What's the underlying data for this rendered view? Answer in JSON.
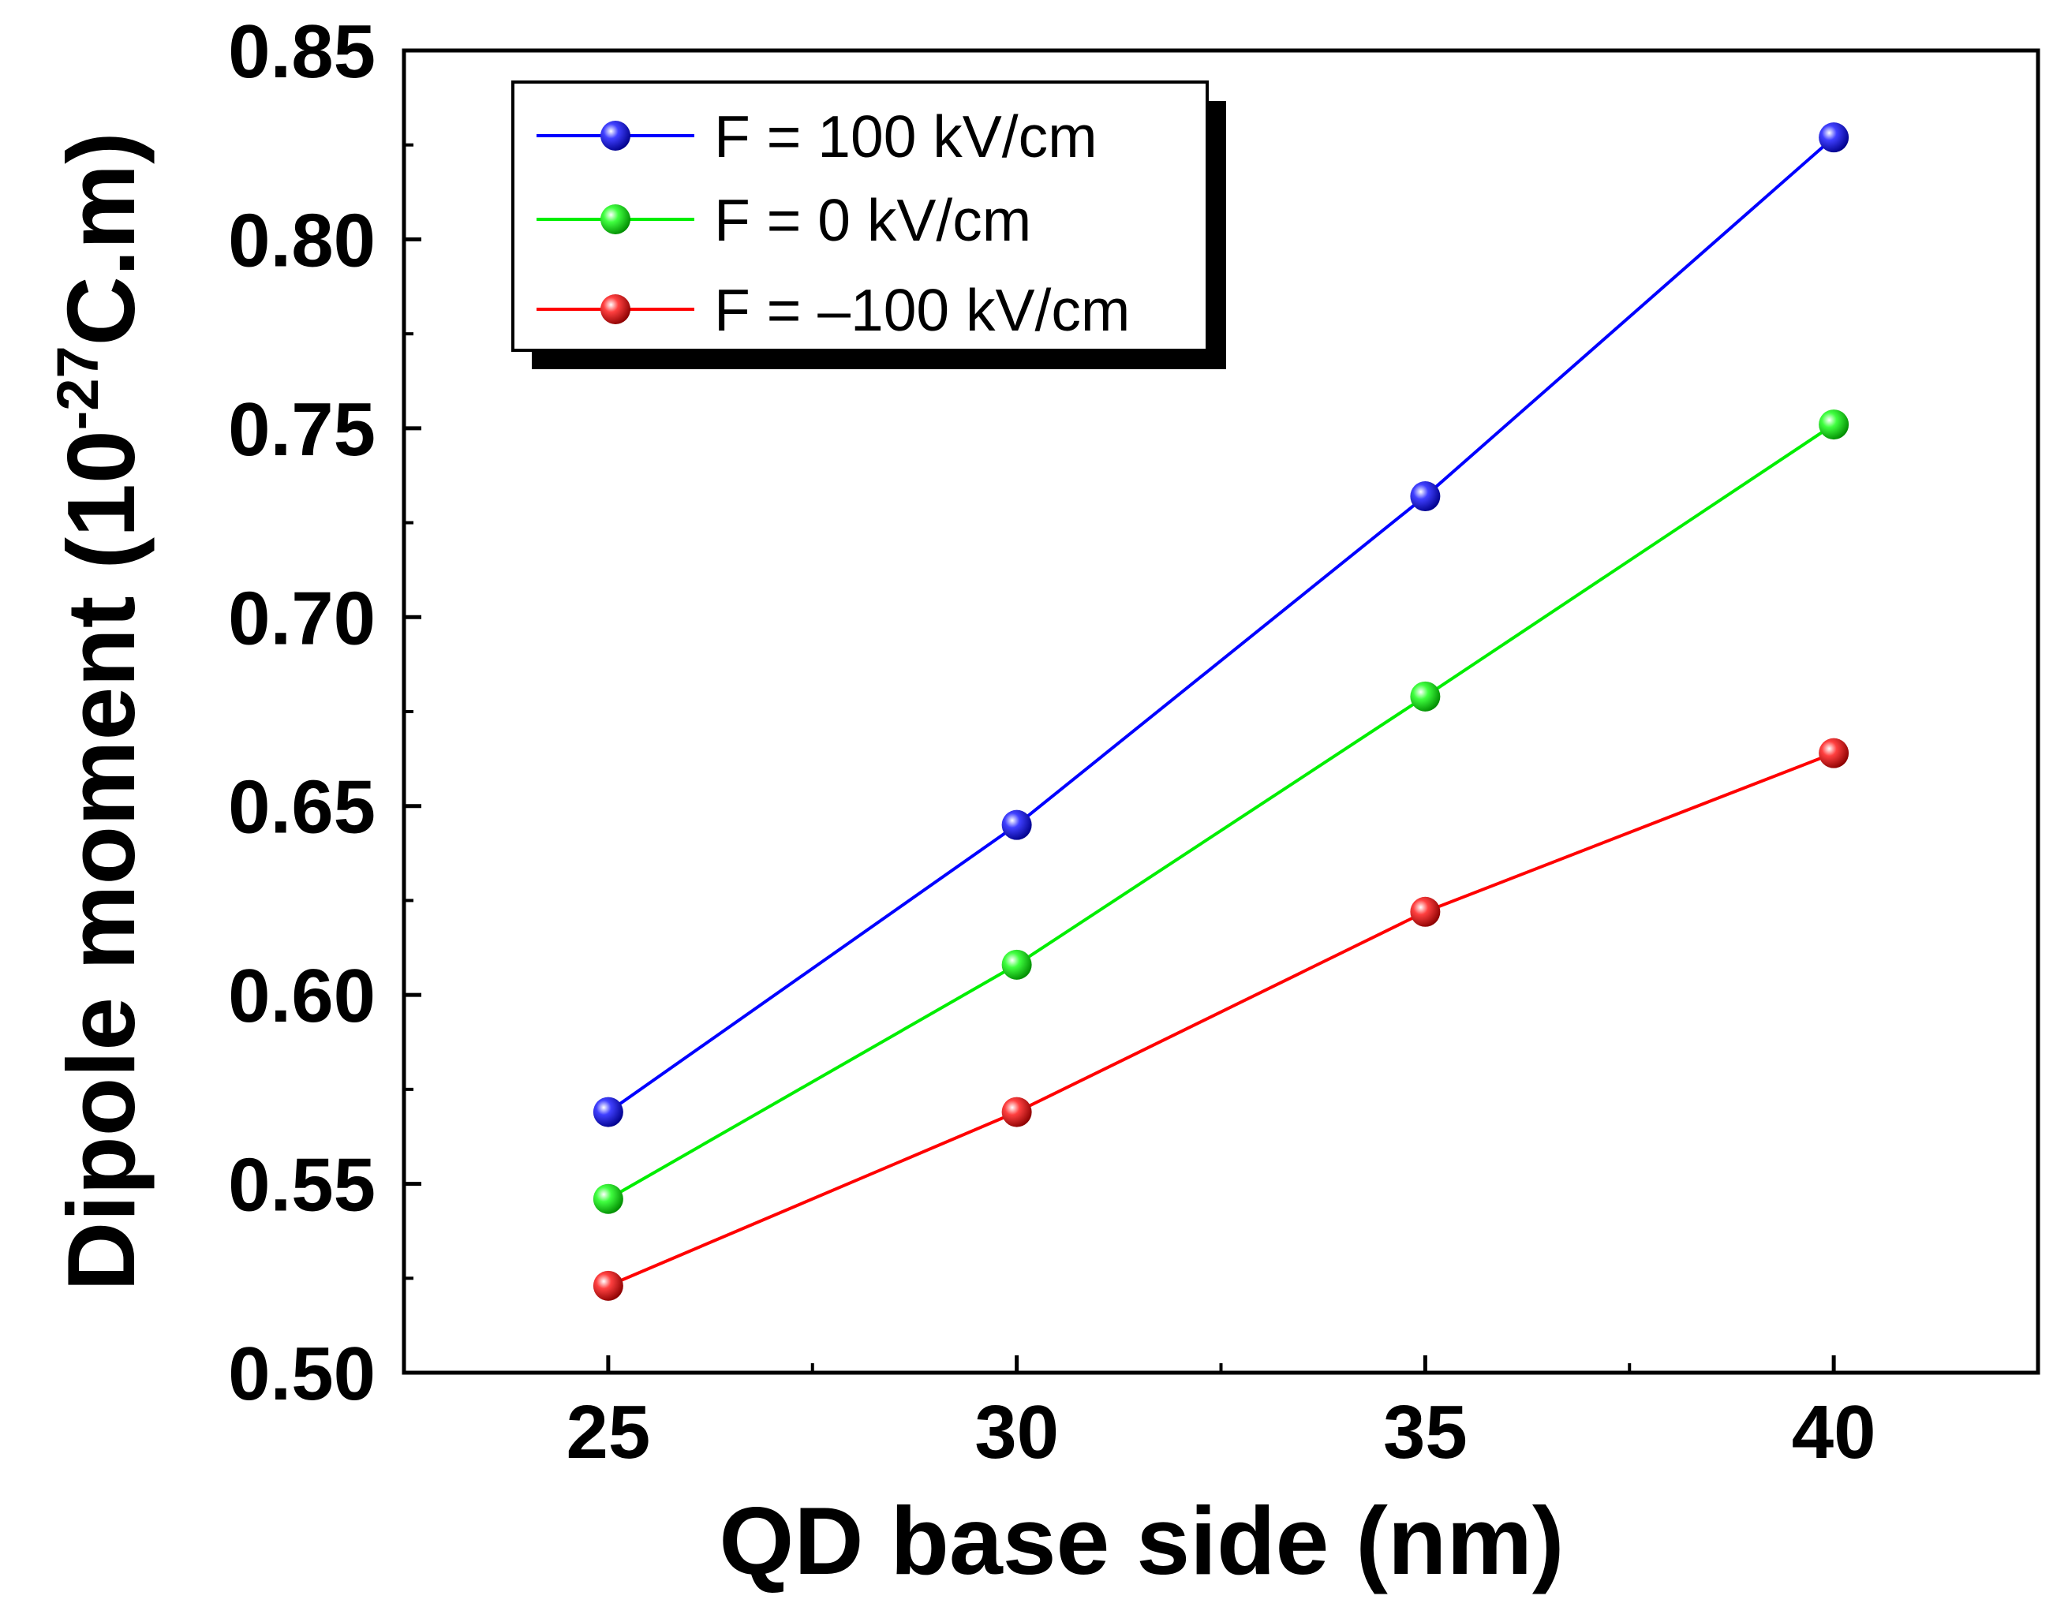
{
  "chart_data": {
    "type": "line",
    "title": "",
    "xlabel": "QD base side (nm)",
    "ylabel_main": "Dipole moment (10",
    "ylabel_sup": "-27",
    "ylabel_end": "C.m)",
    "x": [
      25,
      30,
      35,
      40
    ],
    "xlim": [
      22.5,
      42.5
    ],
    "ylim": [
      0.5,
      0.85
    ],
    "xticks": [
      25,
      30,
      35,
      40
    ],
    "xtick_labels": [
      "25",
      "30",
      "35",
      "40"
    ],
    "yticks": [
      0.5,
      0.55,
      0.6,
      0.65,
      0.7,
      0.75,
      0.8,
      0.85
    ],
    "ytick_labels": [
      "0.50",
      "0.55",
      "0.60",
      "0.65",
      "0.70",
      "0.75",
      "0.80",
      "0.85"
    ],
    "grid": false,
    "legend_position": "top-left",
    "series": [
      {
        "name": "F = 100 kV/cm",
        "color": "#0000ff",
        "values": [
          0.569,
          0.645,
          0.732,
          0.827
        ]
      },
      {
        "name": "F = 0 kV/cm",
        "color": "#00ee00",
        "values": [
          0.546,
          0.608,
          0.679,
          0.751
        ]
      },
      {
        "name": "F = –100 kV/cm",
        "color": "#ff0000",
        "values": [
          0.523,
          0.569,
          0.622,
          0.664
        ]
      }
    ]
  }
}
